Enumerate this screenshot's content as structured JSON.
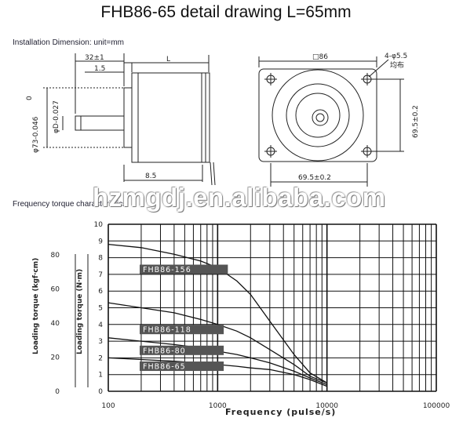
{
  "title": "FHB86-65 detail drawing L=65mm",
  "installation_label": "Installation Dimension: unit=mm",
  "frequency_label": "Frequency torque characteristics",
  "watermark": "hzmgdj.en.alibaba.com",
  "side_view": {
    "dim_top_1": "32±1",
    "dim_top_2": "1.5",
    "dim_top_L": "L",
    "dim_bottom": "8.5",
    "dim_flange": "φ73-0.046",
    "dim_flange_zero": "0",
    "dim_shaft": "φD-0.027"
  },
  "front_view": {
    "square": "□86",
    "holes": "4-φ5.5",
    "holes_note": "均布",
    "dim_right": "69.5±0.2",
    "dim_bottom": "69.5±0.2"
  },
  "chart_data": {
    "type": "line",
    "xlabel": "Frequency (pulse/s)",
    "x_ticks": [
      "100",
      "1000",
      "10000",
      "100000"
    ],
    "left_axis_label": "Loading torque (kgf·cm)",
    "left_ticks": [
      "80",
      "60",
      "40",
      "20",
      "0"
    ],
    "mid_axis_label": "Loading torque (N·m)",
    "mid_ticks": [
      "10",
      "9",
      "8",
      "7",
      "6",
      "5",
      "4",
      "3",
      "2",
      "1",
      "0"
    ],
    "x_scale": "log",
    "x_range": [
      100,
      100000
    ],
    "y_range_Nm": [
      0,
      10
    ],
    "series": [
      {
        "name": "FHB86-156",
        "x": [
          100,
          200,
          400,
          700,
          1000,
          1500,
          2000,
          3000,
          5000,
          7000,
          10000
        ],
        "y": [
          8.8,
          8.6,
          8.2,
          7.8,
          7.4,
          6.6,
          5.8,
          4.2,
          2.2,
          1.1,
          0.5
        ]
      },
      {
        "name": "FHB86-118",
        "x": [
          100,
          200,
          400,
          700,
          1000,
          1500,
          2000,
          3000,
          5000,
          7000,
          10000
        ],
        "y": [
          5.3,
          5.0,
          4.7,
          4.3,
          4.0,
          3.6,
          3.2,
          2.5,
          1.6,
          0.9,
          0.5
        ]
      },
      {
        "name": "FHB86-80",
        "x": [
          100,
          200,
          400,
          700,
          1000,
          1500,
          2000,
          3000,
          5000,
          7000,
          10000
        ],
        "y": [
          3.2,
          3.0,
          2.8,
          2.6,
          2.4,
          2.2,
          2.0,
          1.7,
          1.2,
          0.8,
          0.4
        ]
      },
      {
        "name": "FHB86-65",
        "x": [
          100,
          200,
          400,
          700,
          1000,
          1500,
          2000,
          3000,
          5000,
          7000,
          10000
        ],
        "y": [
          2.0,
          1.9,
          1.8,
          1.7,
          1.6,
          1.5,
          1.4,
          1.3,
          1.0,
          0.7,
          0.3
        ]
      }
    ],
    "grid": true
  },
  "colors": {
    "line": "#111111",
    "label_box": "#555555",
    "label_text": "#ffffff"
  }
}
